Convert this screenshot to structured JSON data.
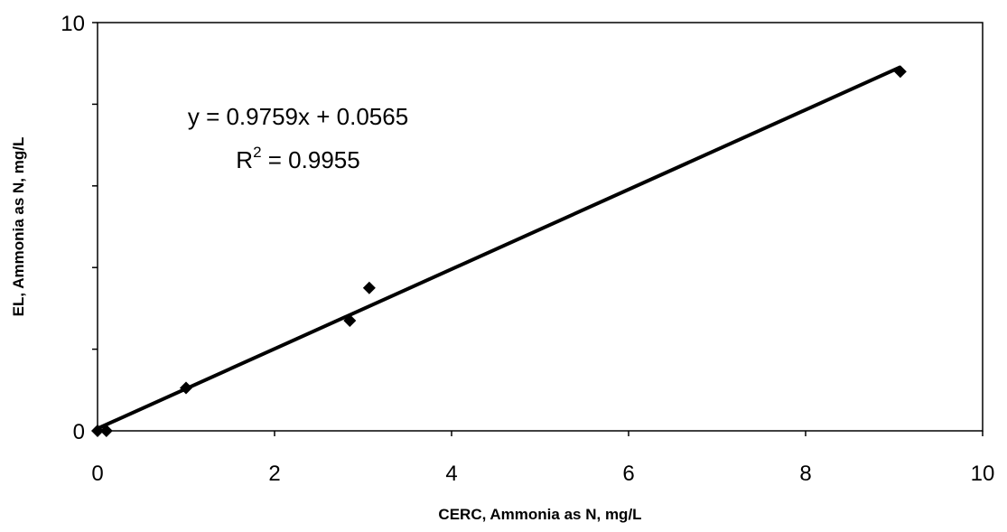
{
  "chart_data": {
    "type": "scatter",
    "title": "",
    "xlabel": "CERC, Ammonia as N, mg/L",
    "ylabel": "EL, Ammonia as N, mg/L",
    "xlim": [
      0,
      10
    ],
    "ylim": [
      0,
      10
    ],
    "x_ticks": [
      "0",
      "2",
      "4",
      "6",
      "8",
      "10"
    ],
    "y_ticks": [
      "0",
      "10"
    ],
    "grid": false,
    "legend": "none",
    "series": [
      {
        "points": [
          {
            "x": 0.0,
            "y": 0.0
          },
          {
            "x": 0.1,
            "y": 0.0
          },
          {
            "x": 1.0,
            "y": 1.05
          },
          {
            "x": 2.85,
            "y": 2.7
          },
          {
            "x": 3.07,
            "y": 3.5
          },
          {
            "x": 9.07,
            "y": 8.8
          }
        ]
      }
    ],
    "trendline": {
      "slope": 0.9759,
      "intercept": 0.0565,
      "equation": "y = 0.9759x + 0.0565",
      "r2_label": "R",
      "r2_sup": "2",
      "r2_value": " = 0.9955"
    },
    "colors": {
      "marker": "#000000",
      "line": "#000000",
      "axis": "#000000"
    }
  }
}
